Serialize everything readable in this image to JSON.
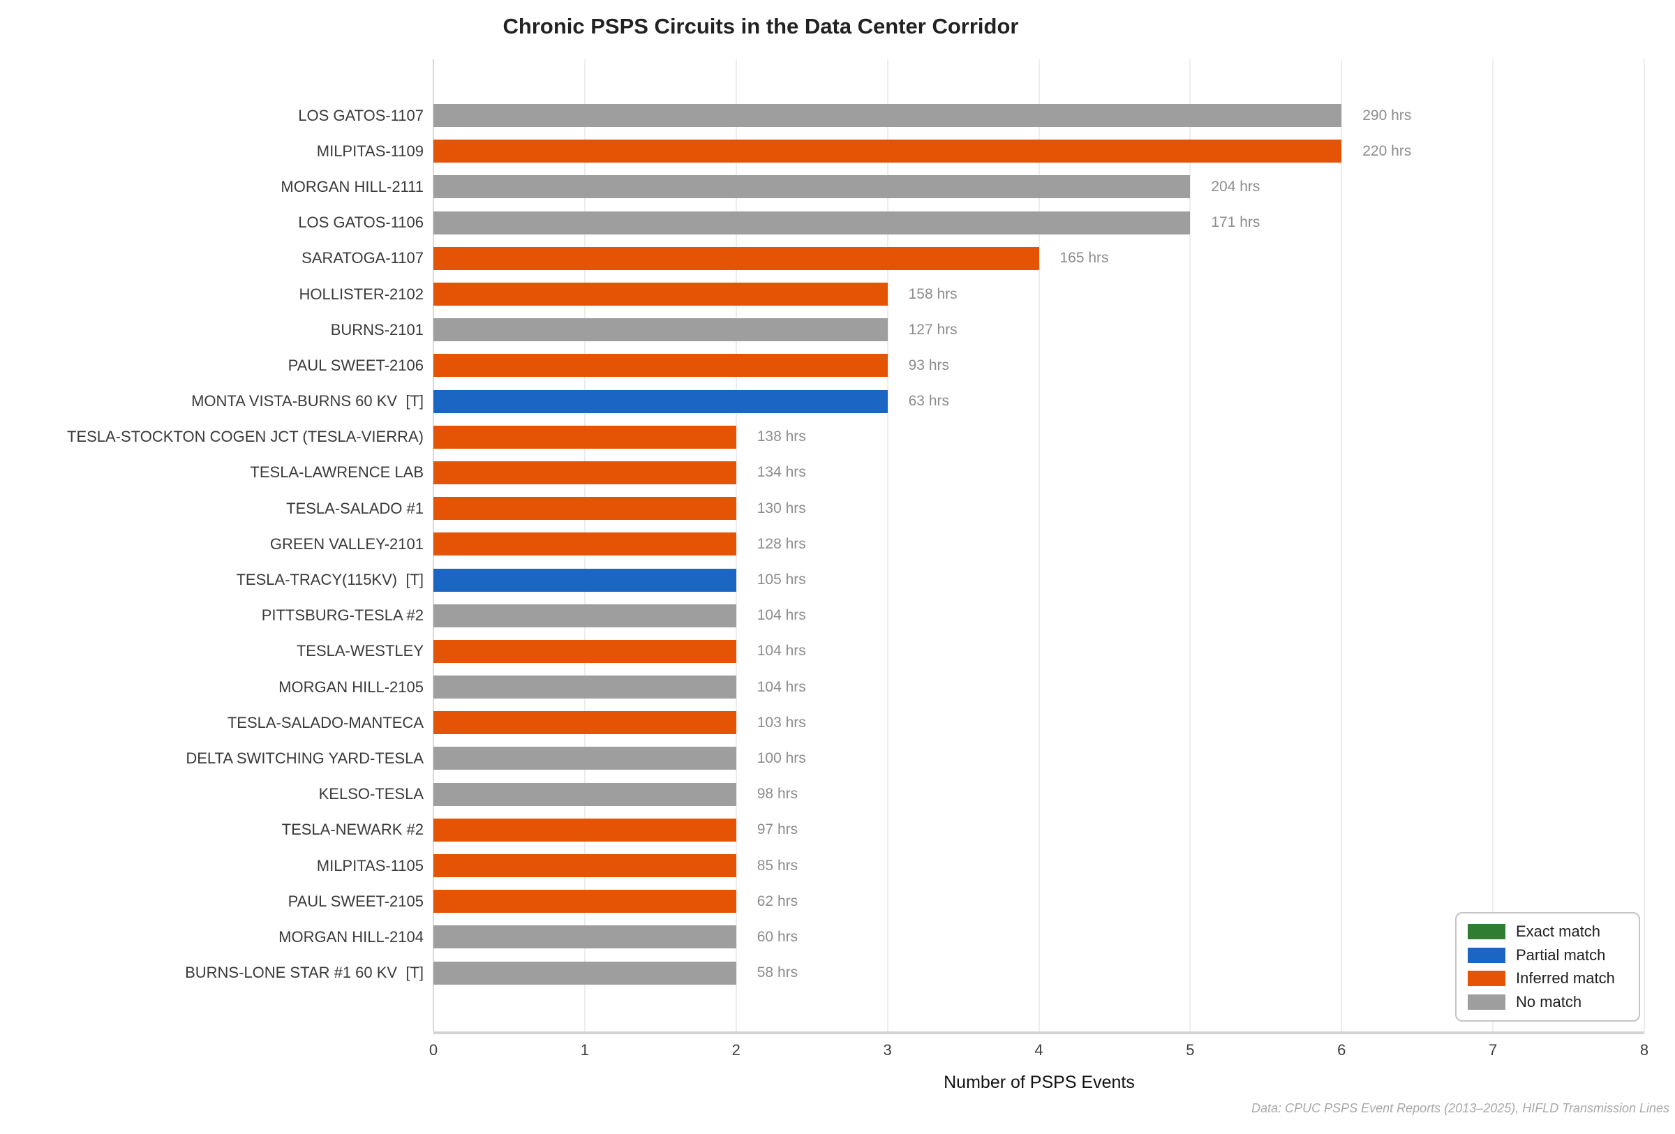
{
  "title": "Chronic PSPS Circuits in the Data Center Corridor",
  "footnote": "Data: CPUC PSPS Event Reports (2013–2025), HIFLD Transmission Lines",
  "colors": {
    "exact": "#2E7D32",
    "partial": "#1A66C2",
    "inferred": "#E55304",
    "none": "#9E9E9E",
    "grid": "#ededed",
    "spine": "#d8d8d8",
    "value_text": "#8c8c8c"
  },
  "legend": {
    "items": [
      {
        "label": "Exact match",
        "key": "exact"
      },
      {
        "label": "Partial match",
        "key": "partial"
      },
      {
        "label": "Inferred match",
        "key": "inferred"
      },
      {
        "label": "No match",
        "key": "none"
      }
    ]
  },
  "chart_data": {
    "type": "bar",
    "orientation": "horizontal",
    "title": "Chronic PSPS Circuits in the Data Center Corridor",
    "xlabel": "Number of PSPS Events",
    "xlim": [
      0,
      8
    ],
    "xticks": [
      0,
      1,
      2,
      3,
      4,
      5,
      6,
      7,
      8
    ],
    "grid": "vertical gridlines on, light gray",
    "legend_position": "lower right",
    "rows": [
      {
        "circuit": "LOS GATOS-1107",
        "events": 6,
        "hours": 290,
        "hours_label": "290 hrs",
        "match": "none"
      },
      {
        "circuit": "MILPITAS-1109",
        "events": 6,
        "hours": 220,
        "hours_label": "220 hrs",
        "match": "inferred"
      },
      {
        "circuit": "MORGAN HILL-2111",
        "events": 5,
        "hours": 204,
        "hours_label": "204 hrs",
        "match": "none"
      },
      {
        "circuit": "LOS GATOS-1106",
        "events": 5,
        "hours": 171,
        "hours_label": "171 hrs",
        "match": "none"
      },
      {
        "circuit": "SARATOGA-1107",
        "events": 4,
        "hours": 165,
        "hours_label": "165 hrs",
        "match": "inferred"
      },
      {
        "circuit": "HOLLISTER-2102",
        "events": 3,
        "hours": 158,
        "hours_label": "158 hrs",
        "match": "inferred"
      },
      {
        "circuit": "BURNS-2101",
        "events": 3,
        "hours": 127,
        "hours_label": "127 hrs",
        "match": "none"
      },
      {
        "circuit": "PAUL SWEET-2106",
        "events": 3,
        "hours": 93,
        "hours_label": "93 hrs",
        "match": "inferred"
      },
      {
        "circuit": "MONTA VISTA-BURNS 60 KV  [T]",
        "events": 3,
        "hours": 63,
        "hours_label": "63 hrs",
        "match": "partial"
      },
      {
        "circuit": "TESLA-STOCKTON COGEN JCT (TESLA-VIERRA)",
        "events": 2,
        "hours": 138,
        "hours_label": "138 hrs",
        "match": "inferred"
      },
      {
        "circuit": "TESLA-LAWRENCE LAB",
        "events": 2,
        "hours": 134,
        "hours_label": "134 hrs",
        "match": "inferred"
      },
      {
        "circuit": "TESLA-SALADO #1",
        "events": 2,
        "hours": 130,
        "hours_label": "130 hrs",
        "match": "inferred"
      },
      {
        "circuit": "GREEN VALLEY-2101",
        "events": 2,
        "hours": 128,
        "hours_label": "128 hrs",
        "match": "inferred"
      },
      {
        "circuit": "TESLA-TRACY(115KV)  [T]",
        "events": 2,
        "hours": 105,
        "hours_label": "105 hrs",
        "match": "partial"
      },
      {
        "circuit": "PITTSBURG-TESLA #2",
        "events": 2,
        "hours": 104,
        "hours_label": "104 hrs",
        "match": "none"
      },
      {
        "circuit": "TESLA-WESTLEY",
        "events": 2,
        "hours": 104,
        "hours_label": "104 hrs",
        "match": "inferred"
      },
      {
        "circuit": "MORGAN HILL-2105",
        "events": 2,
        "hours": 104,
        "hours_label": "104 hrs",
        "match": "none"
      },
      {
        "circuit": "TESLA-SALADO-MANTECA",
        "events": 2,
        "hours": 103,
        "hours_label": "103 hrs",
        "match": "inferred"
      },
      {
        "circuit": "DELTA SWITCHING YARD-TESLA",
        "events": 2,
        "hours": 100,
        "hours_label": "100 hrs",
        "match": "none"
      },
      {
        "circuit": "KELSO-TESLA",
        "events": 2,
        "hours": 98,
        "hours_label": "98 hrs",
        "match": "none"
      },
      {
        "circuit": "TESLA-NEWARK #2",
        "events": 2,
        "hours": 97,
        "hours_label": "97 hrs",
        "match": "inferred"
      },
      {
        "circuit": "MILPITAS-1105",
        "events": 2,
        "hours": 85,
        "hours_label": "85 hrs",
        "match": "inferred"
      },
      {
        "circuit": "PAUL SWEET-2105",
        "events": 2,
        "hours": 62,
        "hours_label": "62 hrs",
        "match": "inferred"
      },
      {
        "circuit": "MORGAN HILL-2104",
        "events": 2,
        "hours": 60,
        "hours_label": "60 hrs",
        "match": "none"
      },
      {
        "circuit": "BURNS-LONE STAR #1 60 KV  [T]",
        "events": 2,
        "hours": 58,
        "hours_label": "58 hrs",
        "match": "none"
      }
    ]
  }
}
